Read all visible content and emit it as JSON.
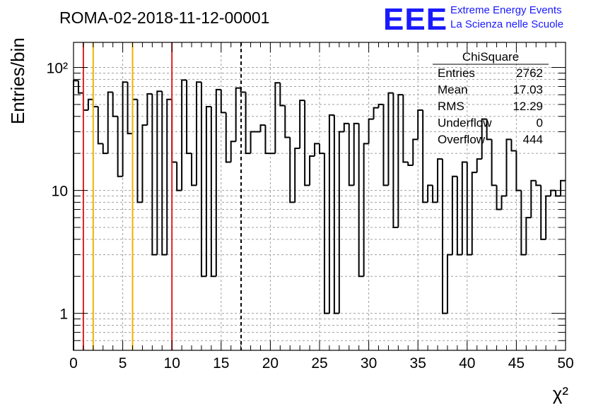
{
  "header": {
    "run_title": "ROMA-02-2018-11-12-00001",
    "logo_text": "EEE",
    "logo_line1": "Extreme Energy Events",
    "logo_line2": "La Scienza nelle Scuole"
  },
  "stats_box": {
    "name": "ChiSquare",
    "rows": [
      {
        "label": "Entries",
        "value": "2762"
      },
      {
        "label": "Mean",
        "value": "17.03"
      },
      {
        "label": "RMS",
        "value": "12.29"
      },
      {
        "label": "Underflow",
        "value": "0"
      },
      {
        "label": "Overflow",
        "value": "444"
      }
    ]
  },
  "colors": {
    "histogram": "#000000",
    "red_line": "#e02020",
    "orange_line": "#f0b400",
    "grid": "#a0a0a0"
  },
  "chart_data": {
    "type": "histogram",
    "xlabel": "χ²",
    "ylabel": "Entries/bin",
    "xlim": [
      0,
      50
    ],
    "ylim": [
      0.5,
      160
    ],
    "yscale": "log",
    "grid": true,
    "bin_width": 0.5,
    "x_ticks": [
      "0",
      "5",
      "10",
      "15",
      "20",
      "25",
      "30",
      "35",
      "40",
      "45",
      "50"
    ],
    "y_ticks": [
      {
        "value": 1,
        "label": "1"
      },
      {
        "value": 10,
        "label": "10"
      },
      {
        "value": 100,
        "label": "10²"
      }
    ],
    "bin_edges_start": 0,
    "counts": [
      78,
      62,
      45,
      55,
      48,
      24,
      20,
      63,
      40,
      13,
      76,
      29,
      55,
      8,
      34,
      61,
      3,
      64,
      3,
      55,
      17,
      10,
      79,
      20,
      11,
      76,
      2,
      48,
      2,
      66,
      43,
      17,
      25,
      68,
      63,
      20,
      30,
      30,
      34,
      20,
      20,
      75,
      49,
      27,
      8,
      22,
      54,
      11,
      19,
      24,
      20,
      1,
      41,
      1,
      30,
      35,
      11,
      35,
      2,
      24,
      38,
      47,
      50,
      11,
      62,
      5,
      60,
      17,
      16,
      26,
      45,
      8,
      11,
      8,
      18,
      1,
      3,
      13,
      3,
      17,
      3,
      14,
      18,
      38,
      26,
      11,
      7,
      9,
      26,
      21,
      10,
      3,
      6,
      12,
      11,
      4,
      9,
      10,
      9,
      12
    ],
    "vertical_lines": [
      {
        "x": 1,
        "color": "red",
        "style": "solid"
      },
      {
        "x": 2,
        "color": "orange",
        "style": "solid"
      },
      {
        "x": 6,
        "color": "orange",
        "style": "solid"
      },
      {
        "x": 10,
        "color": "red",
        "style": "solid"
      },
      {
        "x": 17.03,
        "color": "black",
        "style": "dashed"
      }
    ]
  }
}
